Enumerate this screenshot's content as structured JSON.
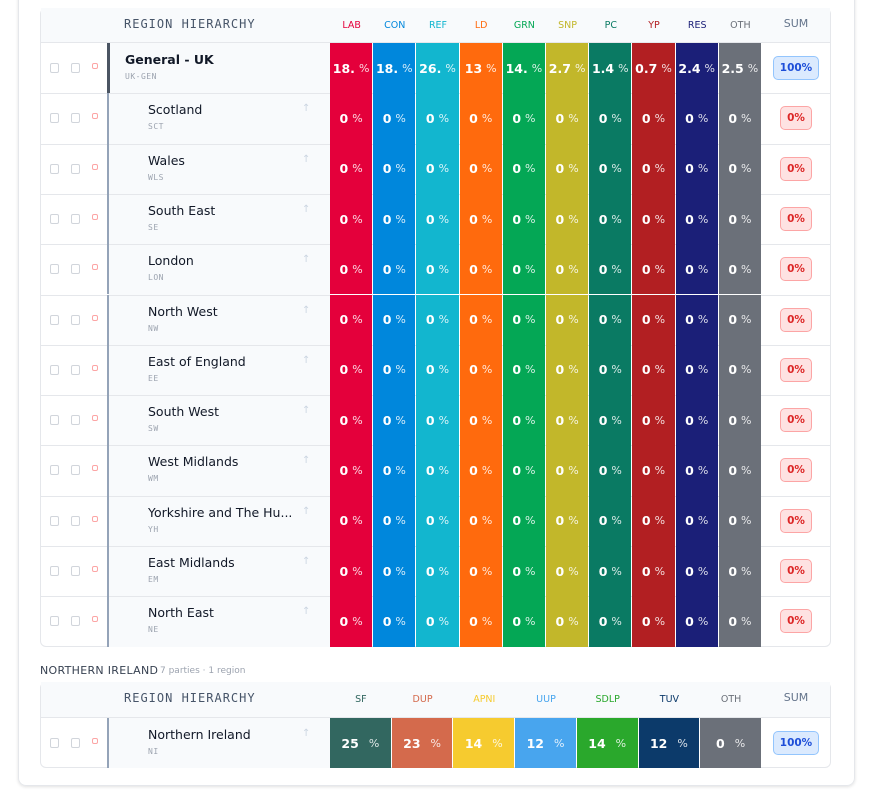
{
  "sections": [
    {
      "header": "REGION HIERARCHY",
      "sum_label": "SUM",
      "unit": "%",
      "parties": [
        {
          "label": "LAB",
          "color": "#e4003b"
        },
        {
          "label": "CON",
          "color": "#0087dc"
        },
        {
          "label": "REF",
          "color": "#12b6cf"
        },
        {
          "label": "LD",
          "color": "#ff6a0d"
        },
        {
          "label": "GRN",
          "color": "#04a755"
        },
        {
          "label": "SNP",
          "color": "#c2b72a"
        },
        {
          "label": "PC",
          "color": "#0a7a63"
        },
        {
          "label": "YP",
          "color": "#b21f22"
        },
        {
          "label": "RES",
          "color": "#1b1f78"
        },
        {
          "label": "OTH",
          "color": "#6b7079"
        }
      ],
      "rows": [
        {
          "name": "General - UK",
          "code": "UK-GEN",
          "values": [
            "18.",
            "18.",
            "26.",
            "13",
            "14.",
            "2.7",
            "1.4",
            "0.7",
            "2.4",
            "2.5"
          ],
          "sum": "100%"
        },
        {
          "name": "Scotland",
          "code": "SCT",
          "values": [
            "0",
            "0",
            "0",
            "0",
            "0",
            "0",
            "0",
            "0",
            "0",
            "0"
          ],
          "sum": "0%"
        },
        {
          "name": "Wales",
          "code": "WLS",
          "values": [
            "0",
            "0",
            "0",
            "0",
            "0",
            "0",
            "0",
            "0",
            "0",
            "0"
          ],
          "sum": "0%"
        },
        {
          "name": "South East",
          "code": "SE",
          "values": [
            "0",
            "0",
            "0",
            "0",
            "0",
            "0",
            "0",
            "0",
            "0",
            "0"
          ],
          "sum": "0%"
        },
        {
          "name": "London",
          "code": "LON",
          "values": [
            "0",
            "0",
            "0",
            "0",
            "0",
            "0",
            "0",
            "0",
            "0",
            "0"
          ],
          "sum": "0%"
        },
        {
          "name": "North West",
          "code": "NW",
          "values": [
            "0",
            "0",
            "0",
            "0",
            "0",
            "0",
            "0",
            "0",
            "0",
            "0"
          ],
          "sum": "0%"
        },
        {
          "name": "East of England",
          "code": "EE",
          "values": [
            "0",
            "0",
            "0",
            "0",
            "0",
            "0",
            "0",
            "0",
            "0",
            "0"
          ],
          "sum": "0%"
        },
        {
          "name": "South West",
          "code": "SW",
          "values": [
            "0",
            "0",
            "0",
            "0",
            "0",
            "0",
            "0",
            "0",
            "0",
            "0"
          ],
          "sum": "0%"
        },
        {
          "name": "West Midlands",
          "code": "WM",
          "values": [
            "0",
            "0",
            "0",
            "0",
            "0",
            "0",
            "0",
            "0",
            "0",
            "0"
          ],
          "sum": "0%"
        },
        {
          "name": "Yorkshire and The Hu...",
          "code": "YH",
          "values": [
            "0",
            "0",
            "0",
            "0",
            "0",
            "0",
            "0",
            "0",
            "0",
            "0"
          ],
          "sum": "0%"
        },
        {
          "name": "East Midlands",
          "code": "EM",
          "values": [
            "0",
            "0",
            "0",
            "0",
            "0",
            "0",
            "0",
            "0",
            "0",
            "0"
          ],
          "sum": "0%"
        },
        {
          "name": "North East",
          "code": "NE",
          "values": [
            "0",
            "0",
            "0",
            "0",
            "0",
            "0",
            "0",
            "0",
            "0",
            "0"
          ],
          "sum": "0%"
        }
      ]
    },
    {
      "title": "NORTHERN IRELAND",
      "subtitle": "7 parties · 1 region",
      "header": "REGION HIERARCHY",
      "sum_label": "SUM",
      "unit": "%",
      "parties": [
        {
          "label": "SF",
          "color": "#326760"
        },
        {
          "label": "DUP",
          "color": "#d46a4c"
        },
        {
          "label": "APNI",
          "color": "#f6cb2f"
        },
        {
          "label": "UUP",
          "color": "#48a5ee"
        },
        {
          "label": "SDLP",
          "color": "#2aa82c"
        },
        {
          "label": "TUV",
          "color": "#0c3a6a"
        },
        {
          "label": "OTH",
          "color": "#6b7079"
        }
      ],
      "rows": [
        {
          "name": "Northern Ireland",
          "code": "NI",
          "values": [
            "25",
            "23",
            "14",
            "12",
            "14",
            "12",
            "0"
          ],
          "sum": "100%"
        }
      ]
    }
  ]
}
